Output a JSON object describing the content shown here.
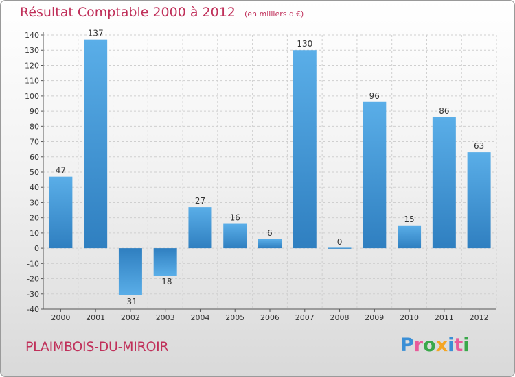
{
  "header": {
    "title": "Résultat Comptable 2000 à 2012",
    "subtitle": "(en milliers d'€)"
  },
  "footer": {
    "commune": "PLAIMBOIS-DU-MIROIR",
    "logo": "Proxiti",
    "logo_letters": [
      {
        "char": "P",
        "color": "#3a8fd6"
      },
      {
        "char": "r",
        "color": "#e85a9a"
      },
      {
        "char": "o",
        "color": "#3aa84a"
      },
      {
        "char": "x",
        "color": "#f5a623"
      },
      {
        "char": "i",
        "color": "#3a8fd6"
      },
      {
        "char": "t",
        "color": "#e85a9a"
      },
      {
        "char": "i",
        "color": "#3aa84a"
      }
    ]
  },
  "colors": {
    "bar_light": "#5aaee8",
    "bar_dark": "#2f7fc0",
    "accent_text": "#c0305a"
  },
  "chart_data": {
    "type": "bar",
    "title": "Résultat Comptable 2000 à 2012",
    "subtitle": "(en milliers d'€)",
    "xlabel": "",
    "ylabel": "",
    "categories": [
      "2000",
      "2001",
      "2002",
      "2003",
      "2004",
      "2005",
      "2006",
      "2007",
      "2008",
      "2009",
      "2010",
      "2011",
      "2012"
    ],
    "values": [
      47,
      137,
      -31,
      -18,
      27,
      16,
      6,
      130,
      0,
      96,
      15,
      86,
      63
    ],
    "ylim": [
      -40,
      140
    ],
    "yticks": [
      -40,
      -30,
      -20,
      -10,
      0,
      10,
      20,
      30,
      40,
      50,
      60,
      70,
      80,
      90,
      100,
      110,
      120,
      130,
      140
    ],
    "grid": true
  }
}
